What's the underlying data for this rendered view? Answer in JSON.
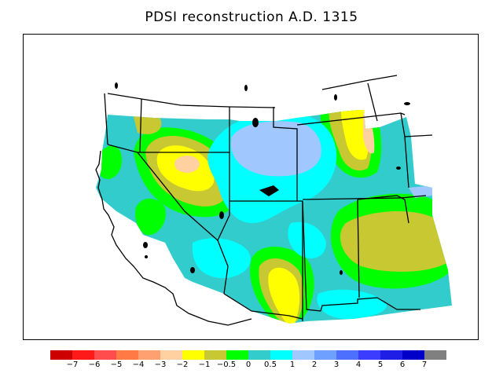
{
  "title": "PDSI reconstruction A.D. 1315",
  "legend": {
    "colors": [
      "#cc0000",
      "#ff1a1a",
      "#ff4d4d",
      "#ff7a45",
      "#ffa070",
      "#ffd0a0",
      "#ffff00",
      "#c8c832",
      "#00ff00",
      "#33cccc",
      "#00ffff",
      "#a0c8ff",
      "#6ea0ff",
      "#4d70ff",
      "#3c3cff",
      "#1e1ee6",
      "#0000c8",
      "#808080"
    ],
    "tick_labels": [
      "−7",
      "−6",
      "−5",
      "−4",
      "−3",
      "−2",
      "−1",
      "−0.5",
      "0",
      "0.5",
      "1",
      "2",
      "3",
      "4",
      "5",
      "6",
      "7"
    ]
  },
  "map": {
    "region": "Western United States",
    "background_class_color": "#33cccc"
  }
}
